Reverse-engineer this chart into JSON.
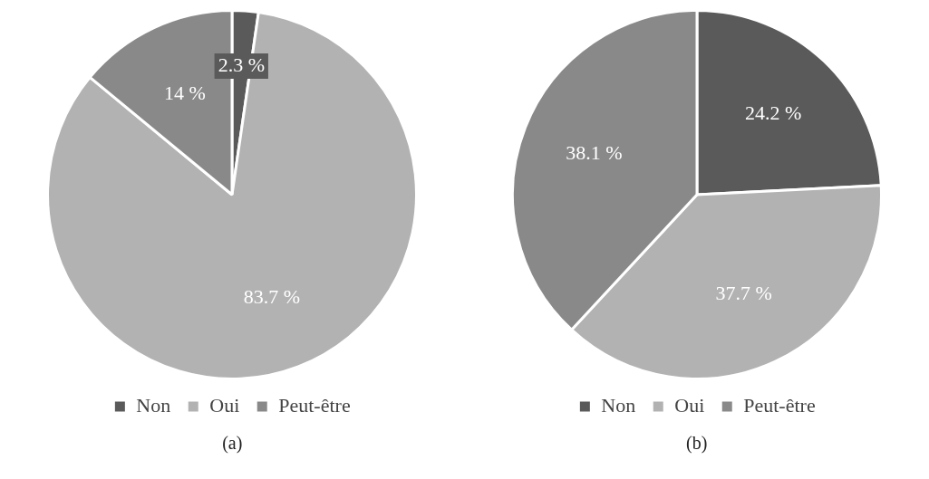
{
  "chart_data": [
    {
      "type": "pie",
      "categories": [
        "Non",
        "Oui",
        "Peut-être"
      ],
      "values": [
        2.3,
        83.7,
        14
      ],
      "colors": [
        "#5a5a5a",
        "#b2b2b2",
        "#898989"
      ],
      "value_labels": [
        "2.3 %",
        "83.7 %",
        "14 %"
      ],
      "legend": "bottom",
      "annotations": [
        "(a)"
      ]
    },
    {
      "type": "pie",
      "categories": [
        "Non",
        "Oui",
        "Peut-être"
      ],
      "values": [
        24.2,
        37.7,
        38.1
      ],
      "colors": [
        "#5a5a5a",
        "#b2b2b2",
        "#898989"
      ],
      "value_labels": [
        "24.2 %",
        "37.7 %",
        "38.1 %"
      ],
      "legend": "bottom",
      "annotations": [
        "(b)"
      ]
    }
  ]
}
